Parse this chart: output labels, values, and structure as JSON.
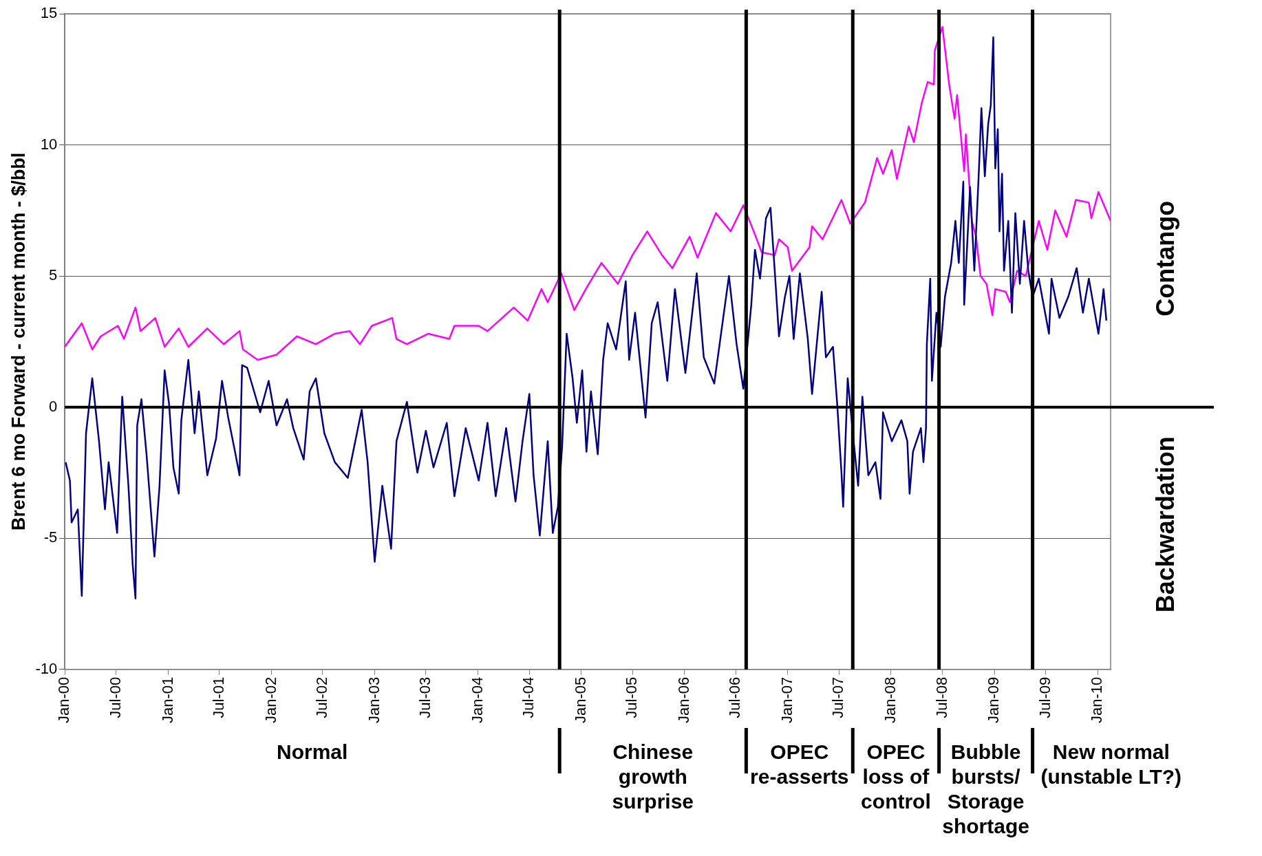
{
  "chart_data": {
    "type": "line",
    "ylabel": "Brent 6 mo Forward - current month - $/bbl",
    "xlim": [
      "2000-01-01",
      "2010-02-16"
    ],
    "xticks": [
      {
        "value": "2000-01-01",
        "label": "Jan-00"
      },
      {
        "value": "2000-07-01",
        "label": "Jul-00"
      },
      {
        "value": "2001-01-01",
        "label": "Jan-01"
      },
      {
        "value": "2001-07-01",
        "label": "Jul-01"
      },
      {
        "value": "2002-01-01",
        "label": "Jan-02"
      },
      {
        "value": "2002-07-01",
        "label": "Jul-02"
      },
      {
        "value": "2003-01-01",
        "label": "Jan-03"
      },
      {
        "value": "2003-07-01",
        "label": "Jul-03"
      },
      {
        "value": "2004-01-01",
        "label": "Jan-04"
      },
      {
        "value": "2004-07-01",
        "label": "Jul-04"
      },
      {
        "value": "2005-01-01",
        "label": "Jan-05"
      },
      {
        "value": "2005-07-01",
        "label": "Jul-05"
      },
      {
        "value": "2006-01-01",
        "label": "Jan-06"
      },
      {
        "value": "2006-07-01",
        "label": "Jul-06"
      },
      {
        "value": "2007-01-01",
        "label": "Jan-07"
      },
      {
        "value": "2007-07-01",
        "label": "Jul-07"
      },
      {
        "value": "2008-01-01",
        "label": "Jan-08"
      },
      {
        "value": "2008-07-01",
        "label": "Jul-08"
      },
      {
        "value": "2009-01-01",
        "label": "Jan-09"
      },
      {
        "value": "2009-07-01",
        "label": "Jul-09"
      },
      {
        "value": "2010-01-01",
        "label": "Jan-10"
      }
    ],
    "ylim": [
      -10,
      15
    ],
    "yticks": [
      -10,
      -5,
      0,
      5,
      10,
      15
    ],
    "grid": "y",
    "legend": false,
    "marker": "none",
    "line_style": "solid",
    "series": [
      {
        "color": "#000080",
        "x": [
          "2000-01-04",
          "2000-01-19",
          "2000-01-25",
          "2000-02-16",
          "2000-03-01",
          "2000-03-16",
          "2000-04-07",
          "2000-05-01",
          "2000-05-22",
          "2000-06-04",
          "2000-07-04",
          "2000-07-22",
          "2000-08-13",
          "2000-08-28",
          "2000-09-07",
          "2000-09-13",
          "2000-09-28",
          "2000-10-16",
          "2000-11-13",
          "2000-12-01",
          "2000-12-19",
          "2001-01-04",
          "2001-01-19",
          "2001-02-07",
          "2001-02-16",
          "2001-03-13",
          "2001-04-04",
          "2001-04-19",
          "2001-05-19",
          "2001-06-19",
          "2001-07-10",
          "2001-08-01",
          "2001-08-25",
          "2001-09-10",
          "2001-09-19",
          "2001-10-07",
          "2001-11-22",
          "2001-12-22",
          "2002-01-19",
          "2002-02-25",
          "2002-03-19",
          "2002-04-25",
          "2002-05-16",
          "2002-06-07",
          "2002-07-07",
          "2002-08-13",
          "2002-09-28",
          "2002-11-16",
          "2002-12-07",
          "2003-01-01",
          "2003-01-28",
          "2003-02-28",
          "2003-03-19",
          "2003-04-25",
          "2003-06-01",
          "2003-07-01",
          "2003-07-28",
          "2003-09-13",
          "2003-10-10",
          "2003-11-19",
          "2004-01-04",
          "2004-02-04",
          "2004-03-04",
          "2004-04-10",
          "2004-05-13",
          "2004-06-07",
          "2004-07-01",
          "2004-07-16",
          "2004-08-07",
          "2004-09-04",
          "2004-09-22",
          "2004-10-10",
          "2004-10-25",
          "2004-11-10",
          "2004-12-01",
          "2004-12-16",
          "2005-01-04",
          "2005-01-19",
          "2005-02-04",
          "2005-02-28",
          "2005-03-19",
          "2005-04-04",
          "2005-05-04",
          "2005-06-07",
          "2005-06-19",
          "2005-07-10",
          "2005-08-16",
          "2005-09-07",
          "2005-09-28",
          "2005-11-01",
          "2005-11-28",
          "2006-01-04",
          "2006-02-13",
          "2006-03-10",
          "2006-04-16",
          "2006-06-07",
          "2006-07-04",
          "2006-07-28",
          "2006-08-25",
          "2006-09-07",
          "2006-09-25",
          "2006-10-16",
          "2006-11-01",
          "2006-11-16",
          "2006-12-01",
          "2006-12-22",
          "2007-01-07",
          "2007-01-22",
          "2007-02-13",
          "2007-03-13",
          "2007-03-28",
          "2007-05-01",
          "2007-05-16",
          "2007-06-10",
          "2007-06-25",
          "2007-07-10",
          "2007-07-16",
          "2007-08-01",
          "2007-08-22",
          "2007-09-07",
          "2007-09-22",
          "2007-10-13",
          "2007-11-07",
          "2007-11-25",
          "2007-12-04",
          "2008-01-04",
          "2008-02-07",
          "2008-02-28",
          "2008-03-07",
          "2008-03-19",
          "2008-04-16",
          "2008-04-25",
          "2008-05-04",
          "2008-05-07",
          "2008-05-19",
          "2008-05-25",
          "2008-06-10",
          "2008-06-25",
          "2008-07-10",
          "2008-08-01",
          "2008-08-16",
          "2008-08-28",
          "2008-09-13",
          "2008-09-16",
          "2008-10-07",
          "2008-10-22",
          "2008-11-07",
          "2008-11-16",
          "2008-11-28",
          "2008-12-10",
          "2008-12-19",
          "2008-12-28",
          "2009-01-04",
          "2009-01-13",
          "2009-01-19",
          "2009-01-28",
          "2009-02-04",
          "2009-02-19",
          "2009-03-04",
          "2009-03-16",
          "2009-04-01",
          "2009-04-16",
          "2009-05-01",
          "2009-05-16",
          "2009-06-07",
          "2009-07-13",
          "2009-07-22",
          "2009-08-19",
          "2009-09-19",
          "2009-10-19",
          "2009-11-10",
          "2009-12-01",
          "2010-01-04",
          "2010-01-22",
          "2010-02-01"
        ],
        "values": [
          -2.1,
          -2.8,
          -4.4,
          -3.9,
          -7.2,
          -1.0,
          1.1,
          -1.3,
          -3.9,
          -2.1,
          -4.8,
          0.4,
          -3.0,
          -6.0,
          -7.3,
          -0.7,
          0.3,
          -1.8,
          -5.7,
          -3.0,
          1.4,
          0.1,
          -2.3,
          -3.3,
          -0.5,
          1.8,
          -1.0,
          0.6,
          -2.6,
          -1.2,
          1.0,
          -0.4,
          -1.7,
          -2.6,
          1.6,
          1.5,
          -0.2,
          1.0,
          -0.7,
          0.3,
          -0.8,
          -2.0,
          0.6,
          1.1,
          -1.0,
          -2.1,
          -2.7,
          -0.1,
          -2.1,
          -5.9,
          -3.0,
          -5.4,
          -1.3,
          0.2,
          -2.5,
          -0.9,
          -2.3,
          -0.6,
          -3.4,
          -0.8,
          -2.8,
          -0.6,
          -3.4,
          -0.8,
          -3.6,
          -1.3,
          0.5,
          -2.6,
          -4.9,
          -1.3,
          -4.8,
          -3.8,
          -1.5,
          2.8,
          1.1,
          -0.6,
          1.4,
          -1.7,
          0.6,
          -1.8,
          1.8,
          3.2,
          2.2,
          4.8,
          1.8,
          3.6,
          -0.4,
          3.2,
          4.0,
          1.0,
          4.5,
          1.3,
          5.1,
          1.9,
          0.9,
          5.0,
          2.4,
          0.7,
          3.9,
          6.0,
          4.9,
          7.2,
          7.6,
          5.2,
          2.7,
          4.2,
          5.0,
          2.6,
          5.1,
          2.6,
          0.5,
          4.4,
          1.9,
          2.3,
          0.1,
          -2.5,
          -3.8,
          1.1,
          -1.3,
          -3.0,
          0.4,
          -2.6,
          -2.1,
          -3.5,
          -0.2,
          -1.3,
          -0.5,
          -1.3,
          -3.3,
          -1.7,
          -0.8,
          -2.1,
          -0.8,
          2.4,
          4.9,
          1.0,
          3.6,
          2.3,
          4.2,
          5.5,
          7.1,
          5.5,
          8.6,
          3.9,
          8.4,
          5.2,
          9.0,
          11.4,
          8.8,
          10.8,
          11.5,
          14.1,
          9.1,
          10.6,
          6.7,
          8.9,
          5.2,
          7.1,
          3.6,
          7.4,
          4.7,
          7.1,
          5.2,
          4.2,
          4.9,
          2.8,
          4.9,
          3.4,
          4.2,
          5.3,
          3.6,
          4.9,
          2.8,
          4.5,
          3.3
        ]
      },
      {
        "color": "#ff00ff",
        "x": [
          "2000-01-01",
          "2000-03-01",
          "2000-04-07",
          "2000-05-07",
          "2000-07-07",
          "2000-07-28",
          "2000-09-07",
          "2000-09-25",
          "2000-11-16",
          "2000-12-19",
          "2001-02-07",
          "2001-03-13",
          "2001-05-19",
          "2001-07-16",
          "2001-09-10",
          "2001-09-22",
          "2001-11-13",
          "2002-01-19",
          "2002-04-01",
          "2002-06-07",
          "2002-08-13",
          "2002-10-04",
          "2002-11-10",
          "2002-12-22",
          "2003-03-04",
          "2003-03-19",
          "2003-04-25",
          "2003-07-10",
          "2003-09-22",
          "2003-10-10",
          "2004-01-04",
          "2004-02-04",
          "2004-05-07",
          "2004-06-25",
          "2004-08-13",
          "2004-09-04",
          "2004-10-22",
          "2004-12-07",
          "2005-01-22",
          "2005-03-13",
          "2005-05-10",
          "2005-07-01",
          "2005-08-22",
          "2005-10-13",
          "2005-11-19",
          "2006-01-19",
          "2006-02-16",
          "2006-04-22",
          "2006-06-13",
          "2006-07-28",
          "2006-09-10",
          "2006-10-01",
          "2006-11-16",
          "2006-12-01",
          "2007-01-01",
          "2007-01-16",
          "2007-03-19",
          "2007-03-28",
          "2007-05-04",
          "2007-07-10",
          "2007-08-10",
          "2007-10-01",
          "2007-11-13",
          "2007-12-04",
          "2008-01-04",
          "2008-01-22",
          "2008-03-04",
          "2008-03-22",
          "2008-04-19",
          "2008-05-10",
          "2008-06-01",
          "2008-06-04",
          "2008-07-01",
          "2008-07-25",
          "2008-08-13",
          "2008-08-22",
          "2008-09-16",
          "2008-09-22",
          "2008-10-13",
          "2008-10-28",
          "2008-11-13",
          "2008-12-04",
          "2008-12-25",
          "2009-01-04",
          "2009-02-10",
          "2009-02-25",
          "2009-03-22",
          "2009-04-22",
          "2009-05-07",
          "2009-06-07",
          "2009-07-07",
          "2009-08-04",
          "2009-09-13",
          "2009-10-16",
          "2009-12-01",
          "2009-12-10",
          "2010-01-04",
          "2010-02-16"
        ],
        "values": [
          2.3,
          3.2,
          2.2,
          2.7,
          3.1,
          2.6,
          3.8,
          2.9,
          3.4,
          2.3,
          3.0,
          2.3,
          3.0,
          2.4,
          2.9,
          2.2,
          1.8,
          2.0,
          2.7,
          2.4,
          2.8,
          2.9,
          2.4,
          3.1,
          3.4,
          2.6,
          2.4,
          2.8,
          2.6,
          3.1,
          3.1,
          2.9,
          3.8,
          3.3,
          4.5,
          4.0,
          5.1,
          3.7,
          4.6,
          5.5,
          4.7,
          5.8,
          6.7,
          5.8,
          5.3,
          6.5,
          5.7,
          7.4,
          6.7,
          7.7,
          6.5,
          5.9,
          5.8,
          6.4,
          6.1,
          5.2,
          6.1,
          6.9,
          6.4,
          7.9,
          7.0,
          7.8,
          9.5,
          8.9,
          9.8,
          8.7,
          10.7,
          10.1,
          11.6,
          12.4,
          12.3,
          13.6,
          14.5,
          12.3,
          11.0,
          11.9,
          9.0,
          10.4,
          7.1,
          6.5,
          5.0,
          4.7,
          3.5,
          4.5,
          4.4,
          4.0,
          5.2,
          5.0,
          5.7,
          7.1,
          6.0,
          7.5,
          6.5,
          7.9,
          7.8,
          7.2,
          8.2,
          7.1
        ]
      }
    ],
    "ref_lines": [
      {
        "axis": "y",
        "value": 0,
        "color": "#000000"
      },
      {
        "axis": "x",
        "value": "2004-10-16",
        "color": "#000000"
      },
      {
        "axis": "x",
        "value": "2006-08-07",
        "color": "#000000"
      },
      {
        "axis": "x",
        "value": "2007-08-19",
        "color": "#000000"
      },
      {
        "axis": "x",
        "value": "2008-06-19",
        "color": "#000000"
      },
      {
        "axis": "x",
        "value": "2009-05-16",
        "color": "#000000"
      }
    ],
    "annotations": [
      "Normal",
      "Chinese growth surprise",
      "OPEC re-asserts",
      "OPEC loss of control",
      "Bubble bursts/ Storage shortage",
      "New normal (unstable LT?)",
      "Contango",
      "Backwardation"
    ]
  }
}
